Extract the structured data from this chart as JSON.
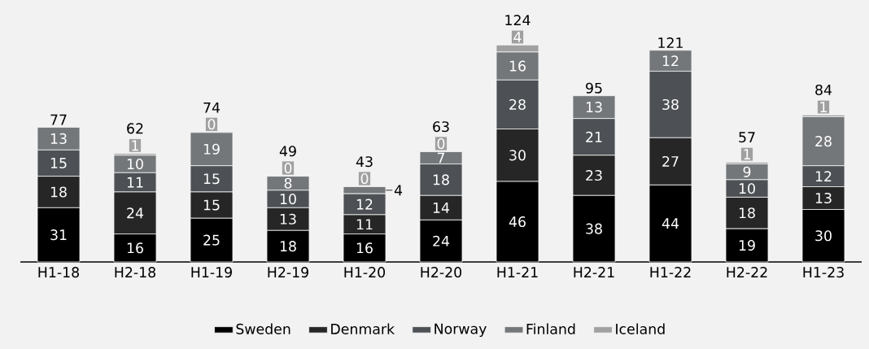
{
  "chart_data": {
    "type": "bar",
    "stacked": true,
    "legend": "bottom",
    "data_labels": true,
    "categories": [
      "H1-18",
      "H2-18",
      "H1-19",
      "H2-19",
      "H1-20",
      "H2-20",
      "H1-21",
      "H2-21",
      "H1-22",
      "H2-22",
      "H1-23"
    ],
    "series": [
      {
        "name": "Sweden",
        "color": "#000000",
        "values": [
          31,
          16,
          25,
          18,
          16,
          24,
          46,
          38,
          44,
          19,
          30
        ]
      },
      {
        "name": "Denmark",
        "color": "#262626",
        "values": [
          18,
          24,
          15,
          13,
          11,
          14,
          30,
          23,
          27,
          18,
          13
        ]
      },
      {
        "name": "Norway",
        "color": "#4d5054",
        "values": [
          15,
          11,
          15,
          10,
          12,
          18,
          28,
          21,
          38,
          10,
          12
        ]
      },
      {
        "name": "Finland",
        "color": "#74777a",
        "values": [
          13,
          10,
          19,
          8,
          4,
          7,
          16,
          13,
          12,
          9,
          28
        ]
      },
      {
        "name": "Iceland",
        "color": "#a0a0a0",
        "values": [
          0,
          1,
          0,
          0,
          0,
          0,
          4,
          0,
          0,
          1,
          1
        ],
        "value_labels": [
          null,
          "1",
          "0",
          "0",
          "0",
          "0",
          "4",
          null,
          null,
          "1",
          "1"
        ]
      }
    ],
    "totals": [
      "77",
      "62",
      "74",
      "49",
      "43",
      "63",
      "124",
      "95",
      "121",
      "57",
      "84"
    ]
  }
}
